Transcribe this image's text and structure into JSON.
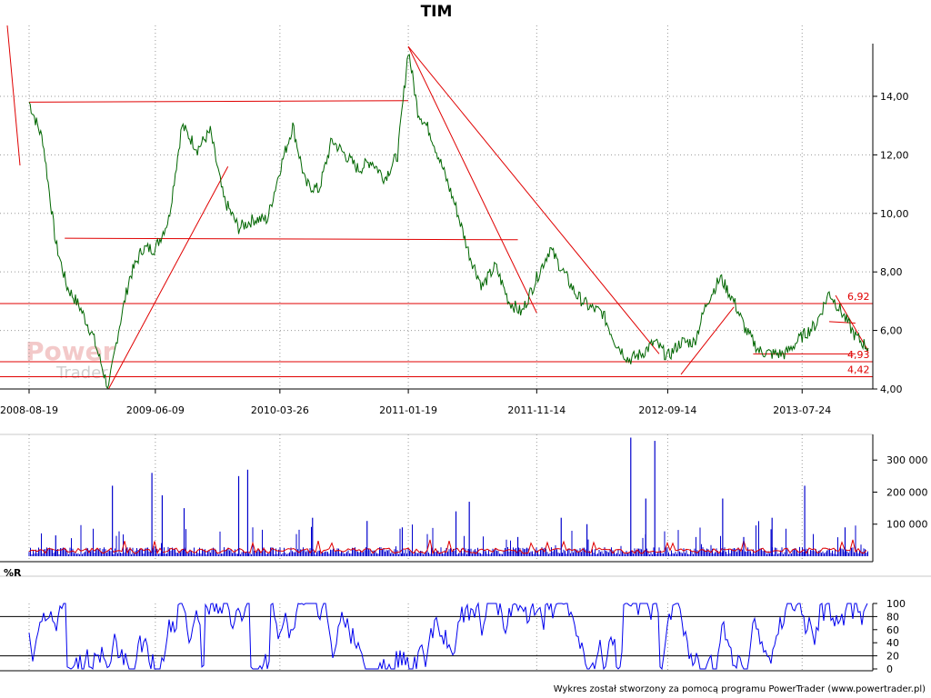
{
  "chart_data": [
    {
      "type": "line",
      "title": "TIM",
      "x_ticks": [
        "2008-08-19",
        "2009-06-09",
        "2010-03-26",
        "2011-01-19",
        "2011-11-14",
        "2012-09-14",
        "2013-07-24"
      ],
      "y_ticks": [
        "4,00",
        "6,00",
        "8,00",
        "10,00",
        "12,00",
        "14,00"
      ],
      "ylim": [
        4.0,
        15.8
      ],
      "grid": true,
      "series": [
        {
          "x": [
            "2008-08-19",
            "2008-09-20",
            "2008-10-20",
            "2008-11-15",
            "2008-12-15",
            "2009-01-15",
            "2009-02-20",
            "2009-03-15",
            "2009-04-10",
            "2009-05-10",
            "2009-06-09",
            "2009-07-10",
            "2009-08-10",
            "2009-09-15",
            "2009-10-15",
            "2009-11-15",
            "2009-12-20",
            "2010-01-25",
            "2010-02-25",
            "2010-03-26",
            "2010-04-25",
            "2010-05-25",
            "2010-06-25",
            "2010-07-25",
            "2010-08-25",
            "2010-09-25",
            "2010-10-25",
            "2010-11-25",
            "2010-12-25",
            "2011-01-19",
            "2011-02-10",
            "2011-03-10",
            "2011-04-10",
            "2011-05-10",
            "2011-06-10",
            "2011-07-10",
            "2011-08-10",
            "2011-09-10",
            "2011-10-10",
            "2011-11-14",
            "2011-12-15",
            "2012-01-15",
            "2012-02-15",
            "2012-03-15",
            "2012-04-15",
            "2012-05-15",
            "2012-06-15",
            "2012-07-15",
            "2012-08-15",
            "2012-09-14",
            "2012-10-15",
            "2012-11-15",
            "2012-12-15",
            "2013-01-15",
            "2013-02-15",
            "2013-03-15",
            "2013-04-15",
            "2013-05-15",
            "2013-06-15",
            "2013-07-24",
            "2013-08-25",
            "2013-09-25",
            "2013-10-25",
            "2013-11-25",
            "2013-12-25"
          ],
          "values": [
            13.8,
            12.5,
            9.0,
            7.5,
            6.8,
            5.8,
            4.0,
            6.0,
            7.8,
            8.8,
            8.8,
            9.8,
            13.0,
            12.2,
            12.8,
            10.5,
            9.5,
            9.8,
            9.8,
            11.5,
            13.0,
            11.0,
            10.8,
            12.5,
            12.0,
            11.5,
            11.8,
            11.2,
            12.0,
            15.6,
            13.5,
            12.8,
            11.5,
            10.2,
            8.6,
            7.5,
            8.2,
            7.0,
            6.6,
            7.8,
            8.8,
            8.0,
            7.2,
            6.8,
            6.6,
            5.6,
            5.0,
            5.2,
            5.6,
            5.1,
            5.6,
            5.6,
            7.0,
            7.8,
            7.0,
            6.0,
            5.3,
            5.2,
            5.2,
            5.8,
            6.2,
            7.3,
            6.6,
            5.8,
            5.4
          ]
        }
      ],
      "levels": [
        "6,92",
        "4,93",
        "4,42"
      ]
    },
    {
      "type": "bar",
      "y_ticks": [
        "100 000",
        "200 000",
        "300 000"
      ],
      "ylim": [
        0,
        380000
      ],
      "series": [
        {
          "x": [
            "2008-10-20",
            "2009-03-01",
            "2009-06-01",
            "2009-06-25",
            "2009-08-15",
            "2009-12-20",
            "2010-01-10",
            "2010-06-10",
            "2010-10-15",
            "2011-01-05",
            "2011-05-10",
            "2011-06-10",
            "2011-10-01",
            "2012-01-10",
            "2012-03-10",
            "2012-06-20",
            "2012-07-25",
            "2012-08-15",
            "2013-01-20",
            "2013-03-10",
            "2013-05-15",
            "2013-07-30",
            "2013-11-01"
          ],
          "values": [
            65000,
            220000,
            260000,
            190000,
            150000,
            250000,
            270000,
            120000,
            110000,
            90000,
            140000,
            170000,
            60000,
            120000,
            100000,
            370000,
            180000,
            360000,
            180000,
            60000,
            120000,
            220000,
            90000
          ]
        }
      ]
    },
    {
      "type": "line",
      "title": "%R",
      "y_ticks": [
        "0",
        "20",
        "40",
        "60",
        "80",
        "100"
      ],
      "ylim": [
        0,
        100
      ],
      "levels": [
        20,
        80
      ]
    }
  ],
  "watermark": {
    "line1": "Power",
    "line2": "Trader"
  },
  "credit": "Wykres został stworzony za pomocą programu PowerTrader (www.powertrader.pl)"
}
